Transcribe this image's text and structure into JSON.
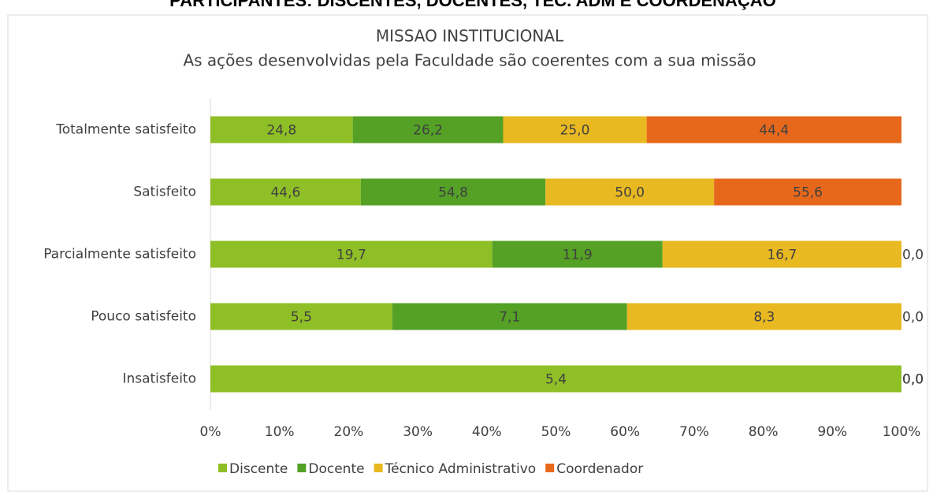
{
  "header": {
    "title": "PARTICIPANTES: DISCENTES, DOCENTES, TÉC. ADM E COORDENAÇÃO"
  },
  "chart_data": {
    "type": "bar_stacked_100",
    "orientation": "horizontal",
    "title": "MISSAO INSTITUCIONAL",
    "subtitle": "As ações desenvolvidas pela Faculdade são coerentes com a sua missão",
    "categories": [
      "Totalmente satisfeito",
      "Satisfeito",
      "Parcialmente satisfeito",
      "Pouco satisfeito",
      "Insatisfeito"
    ],
    "series": [
      {
        "name": "Discente",
        "color": "#8fbf26",
        "values": [
          24.8,
          44.6,
          19.7,
          5.5,
          5.4
        ],
        "value_labels": [
          "24,8",
          "44,6",
          "19,7",
          "5,5",
          "5,4"
        ]
      },
      {
        "name": "Docente",
        "color": "#54a125",
        "values": [
          26.2,
          54.8,
          11.9,
          7.1,
          0
        ],
        "value_labels": [
          "26,2",
          "54,8",
          "11,9",
          "7,1",
          "0,0"
        ]
      },
      {
        "name": "Técnico Administrativo",
        "color": "#e8b921",
        "values": [
          25.0,
          50.0,
          16.7,
          8.3,
          0
        ],
        "value_labels": [
          "25,0",
          "50,0",
          "16,7",
          "8,3",
          "0,0"
        ]
      },
      {
        "name": "Coordenador",
        "color": "#e8681b",
        "values": [
          44.4,
          55.6,
          0,
          0,
          0
        ],
        "value_labels": [
          "44,4",
          "55,6",
          "0,0",
          "0,0",
          "0,0"
        ]
      }
    ],
    "xlim": [
      0,
      100
    ],
    "xticks": [
      {
        "value": 0,
        "label": "0%"
      },
      {
        "value": 10,
        "label": "10%"
      },
      {
        "value": 20,
        "label": "20%"
      },
      {
        "value": 30,
        "label": "30%"
      },
      {
        "value": 40,
        "label": "40%"
      },
      {
        "value": 50,
        "label": "50%"
      },
      {
        "value": 60,
        "label": "60%"
      },
      {
        "value": 70,
        "label": "70%"
      },
      {
        "value": 80,
        "label": "80%"
      },
      {
        "value": 90,
        "label": "90%"
      },
      {
        "value": 100,
        "label": "100%"
      }
    ],
    "legend": "bottom"
  }
}
